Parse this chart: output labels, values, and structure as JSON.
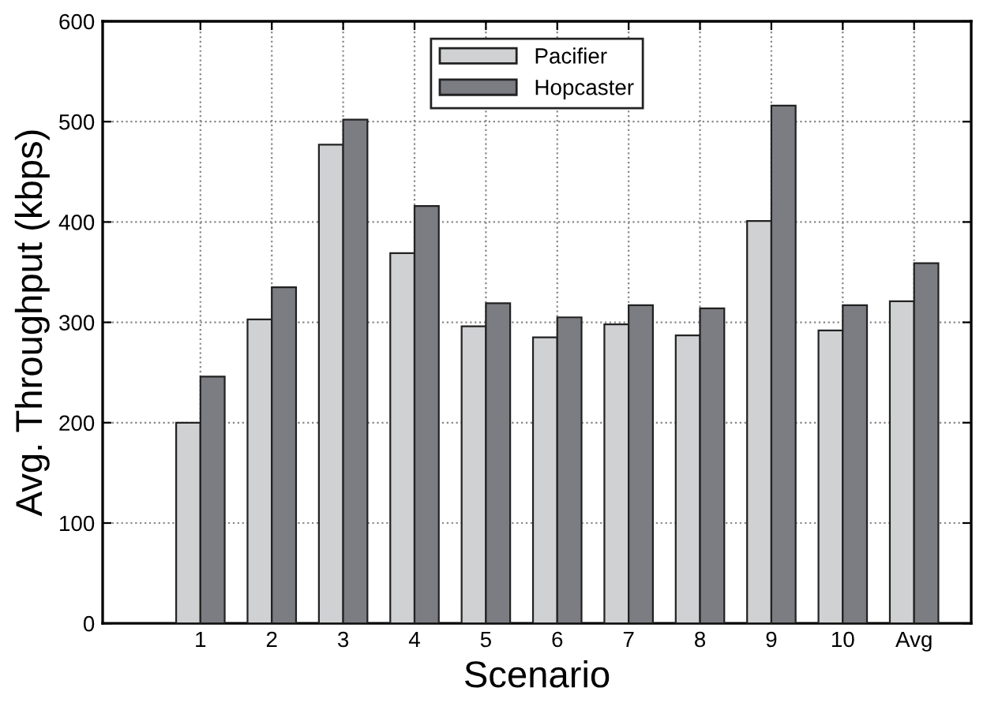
{
  "chart_data": {
    "type": "bar",
    "xlabel": "Scenario",
    "ylabel": "Avg. Throughput (kbps)",
    "categories": [
      "1",
      "2",
      "3",
      "4",
      "5",
      "6",
      "7",
      "8",
      "9",
      "10",
      "Avg"
    ],
    "series": [
      {
        "name": "Pacifier",
        "color": "#d0d1d3",
        "values": [
          200,
          303,
          477,
          369,
          296,
          285,
          298,
          287,
          401,
          292,
          321
        ]
      },
      {
        "name": "Hopcaster",
        "color": "#7c7d82",
        "values": [
          246,
          335,
          502,
          416,
          319,
          305,
          317,
          314,
          516,
          317,
          359
        ]
      }
    ],
    "ylim": [
      0,
      600
    ],
    "yticks": [
      0,
      100,
      200,
      300,
      400,
      500,
      600
    ],
    "grid": true,
    "legend": "top"
  }
}
